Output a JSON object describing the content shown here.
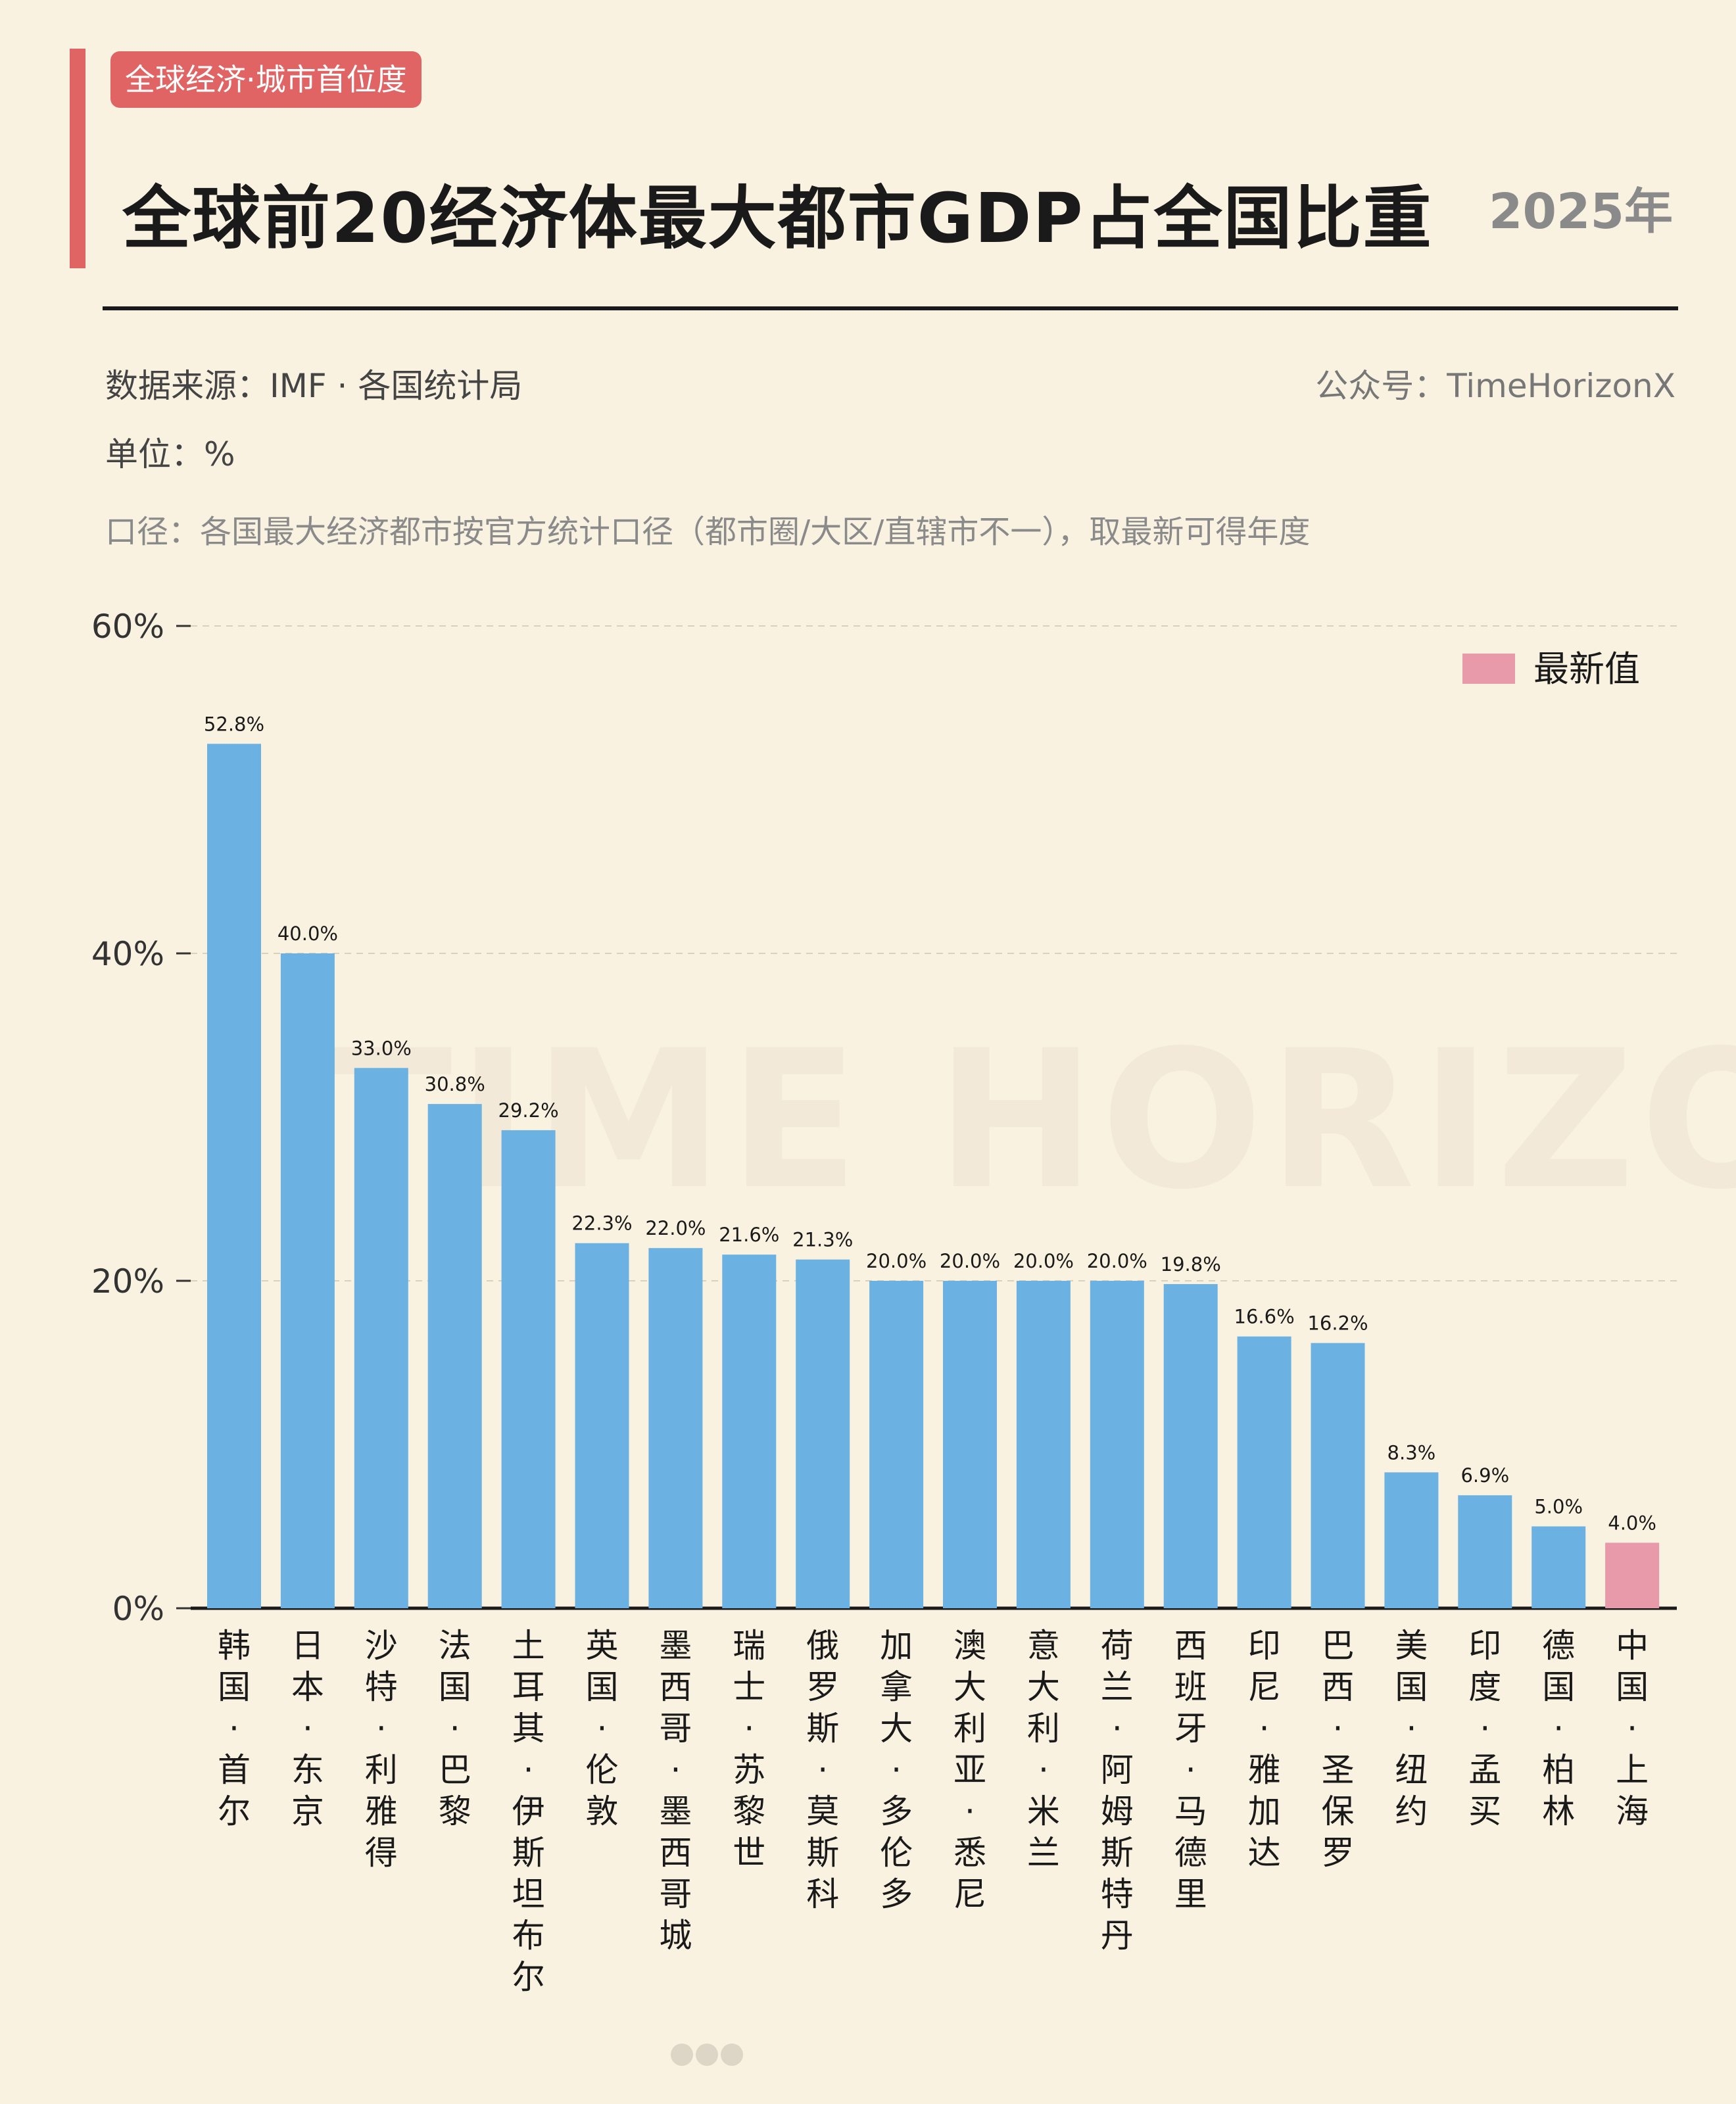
{
  "header": {
    "tag": "全球经济·城市首位度",
    "title": "全球前20经济体最大都市GDP占全国比重",
    "year": "2025年"
  },
  "meta": {
    "source": "数据来源：IMF · 各国统计局",
    "account": "公众号：TimeHorizonX",
    "unit": "单位：%",
    "scope": "口径：各国最大经济都市按官方统计口径（都市圈/大区/直辖市不一），取最新可得年度"
  },
  "watermark": "TIME HORIZON",
  "legend": {
    "label": "最新值"
  },
  "colors": {
    "bar": "#6BB1E1",
    "highlight": "#E899AA",
    "accent": "#E06464",
    "background": "#FAF2E1"
  },
  "chart_data": {
    "type": "bar",
    "title": "全球前20经济体最大都市GDP占全国比重",
    "ylim": [
      0,
      60
    ],
    "yticks": [
      "0%",
      "20%",
      "40%",
      "60%"
    ],
    "grid": true,
    "legend_position": "top-right",
    "categories": [
      "韩国·首尔",
      "日本·东京",
      "沙特·利雅得",
      "法国·巴黎",
      "土耳其·伊斯坦布尔",
      "英国·伦敦",
      "墨西哥·墨西哥城",
      "瑞士·苏黎世",
      "俄罗斯·莫斯科",
      "加拿大·多伦多",
      "澳大利亚·悉尼",
      "意大利·米兰",
      "荷兰·阿姆斯特丹",
      "西班牙·马德里",
      "印尼·雅加达",
      "巴西·圣保罗",
      "美国·纽约",
      "印度·孟买",
      "德国·柏林",
      "中国·上海"
    ],
    "values": [
      52.8,
      40.0,
      33.0,
      30.8,
      29.2,
      22.3,
      22.0,
      21.6,
      21.3,
      20.0,
      20.0,
      20.0,
      20.0,
      19.8,
      16.6,
      16.2,
      8.3,
      6.9,
      5.0,
      4.0
    ],
    "value_labels": [
      "52.8%",
      "40.0%",
      "33.0%",
      "30.8%",
      "29.2%",
      "22.3%",
      "22.0%",
      "21.6%",
      "21.3%",
      "20.0%",
      "20.0%",
      "20.0%",
      "20.0%",
      "19.8%",
      "16.6%",
      "16.2%",
      "8.3%",
      "6.9%",
      "5.0%",
      "4.0%"
    ],
    "highlighted": [
      "中国·上海"
    ]
  }
}
